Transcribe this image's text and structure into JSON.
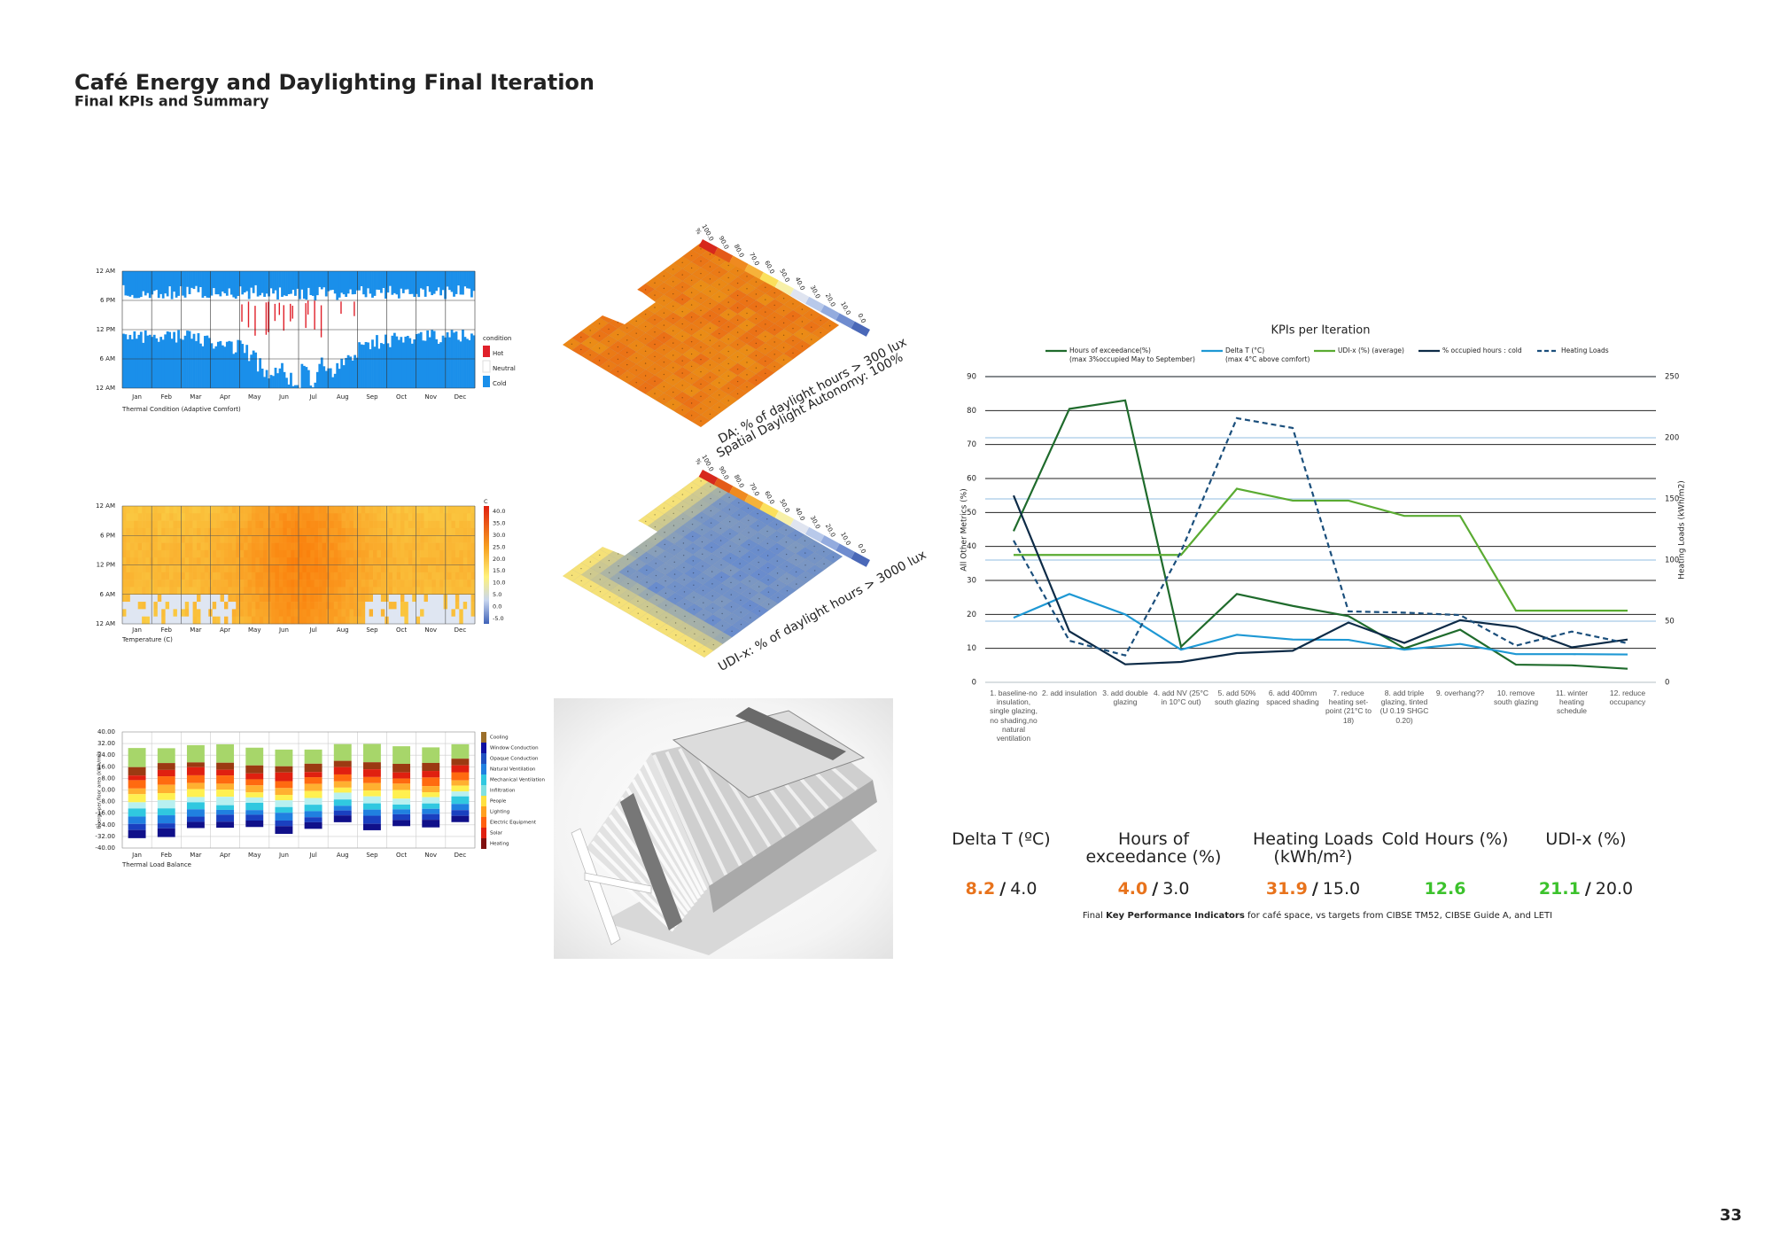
{
  "header": {
    "title": "Café Energy and Daylighting Final Iteration",
    "subtitle": "Final KPIs and Summary"
  },
  "page_number": "33",
  "thermal_condition": {
    "y_labels": [
      "12 AM",
      "6 PM",
      "12 PM",
      "6 AM",
      "12 AM"
    ],
    "months": [
      "Jan",
      "Feb",
      "Mar",
      "Apr",
      "May",
      "Jun",
      "Jul",
      "Aug",
      "Sep",
      "Oct",
      "Nov",
      "Dec"
    ],
    "title": "Thermal Condition (Adaptive Comfort)",
    "legend_title": "condition",
    "legend": [
      "Hot",
      "Neutral",
      "Cold"
    ]
  },
  "temperature": {
    "y_labels": [
      "12 AM",
      "6 PM",
      "12 PM",
      "6 AM",
      "12 AM"
    ],
    "months": [
      "Jan",
      "Feb",
      "Mar",
      "Apr",
      "May",
      "Jun",
      "Jul",
      "Aug",
      "Sep",
      "Oct",
      "Nov",
      "Dec"
    ],
    "title": "Temperature (C)",
    "unit": "C",
    "scale": [
      "40.0",
      "35.0",
      "30.0",
      "25.0",
      "20.0",
      "15.0",
      "10.0",
      "5.0",
      "0.0",
      "-5.0"
    ]
  },
  "load_balance": {
    "y_labels": [
      "40.00",
      "32.00",
      "24.00",
      "16.00",
      "8.00",
      "0.00",
      "-8.00",
      "-16.00",
      "-24.00",
      "-32.00",
      "-40.00"
    ],
    "y_title": "Energy per floor area (kWh/m2)",
    "months": [
      "Jan",
      "Feb",
      "Mar",
      "Apr",
      "May",
      "Jun",
      "Jul",
      "Aug",
      "Sep",
      "Oct",
      "Nov",
      "Dec"
    ],
    "title": "Thermal Load Balance",
    "legend": [
      "Cooling",
      "Window Conduction",
      "Opaque Conduction",
      "Natural Ventilation",
      "Mechanical Ventilation",
      "Infiltration",
      "People",
      "Lighting",
      "Electric Equipment",
      "Solar",
      "Heating"
    ]
  },
  "daylight": [
    {
      "caption": [
        "DA: % of daylight hours > 300 lux",
        "Spatial Daylight Autonomy: 100%"
      ],
      "unit": "%",
      "scale": [
        "100.0",
        "90.0",
        "80.0",
        "70.0",
        "60.0",
        "50.0",
        "40.0",
        "30.0",
        "20.0",
        "10.0",
        "0.0"
      ]
    },
    {
      "caption": [
        "UDI-x: % of daylight hours > 3000 lux"
      ],
      "unit": "%",
      "scale": [
        "100.0",
        "90.0",
        "80.0",
        "70.0",
        "60.0",
        "50.0",
        "40.0",
        "30.0",
        "20.0",
        "10.0",
        "0.0"
      ]
    }
  ],
  "chart_data": {
    "type": "line",
    "title": "KPIs per Iteration",
    "y_label": "All Other Metrics (%)",
    "y2_label": "Heating Loads (kWh/m2)",
    "categories": [
      "1. baseline-no insulation, single glazing, no shading,no natural ventilation",
      "2. add insulation",
      "3. add double glazing",
      "4. add NV (25°C in 10°C out)",
      "5. add 50% south glazing",
      "6. add 400mm spaced shading",
      "7. reduce heating set-point (21°C to 18)",
      "8. add triple glazing, tinted (U 0.19 SHGC 0.20)",
      "9. overhang??",
      "10. remove south glazing",
      "11. winter heating schedule",
      "12. reduce occupancy"
    ],
    "ylim": [
      0,
      90
    ],
    "yticks": [
      0,
      10,
      20,
      30,
      40,
      50,
      60,
      70,
      80,
      90
    ],
    "y2lim": [
      0,
      250
    ],
    "y2ticks": [
      0,
      50,
      100,
      150,
      200,
      250
    ],
    "grid": true,
    "series": [
      {
        "name": "Hours of exceedance(%)",
        "legend_note": "(max 3%occupied May to September)",
        "color": "#1f6b2c",
        "values": [
          44.5,
          80.5,
          83,
          10.5,
          26,
          22.5,
          19.5,
          10,
          15.5,
          5.2,
          5,
          4
        ]
      },
      {
        "name": "Delta T (°C)",
        "legend_note": "(max 4°C above comfort)",
        "color": "#1e98d4",
        "values": [
          19,
          26,
          20,
          9.6,
          14,
          12.6,
          12.5,
          9.6,
          11.3,
          8.3,
          8.3,
          8.2
        ]
      },
      {
        "name": "UDI-x (%) (average)",
        "color": "#5aab32",
        "values": [
          37.5,
          37.5,
          37.5,
          37.5,
          57,
          53.5,
          53.5,
          49,
          49,
          21.1,
          21.1,
          21.1
        ]
      },
      {
        "name": "% occupied hours : cold",
        "color": "#0d2b47",
        "values": [
          55,
          15,
          5.3,
          6,
          8.6,
          9.3,
          17.6,
          11.6,
          18.3,
          16.3,
          10.3,
          12.6
        ]
      },
      {
        "name": "Heating Loads",
        "color": "#1b4f7c",
        "dashed": true,
        "axis": "y2",
        "values": [
          116,
          34,
          22,
          107,
          216,
          208,
          58,
          57,
          55,
          30,
          41.5,
          31.9
        ]
      }
    ]
  },
  "kpi_table": {
    "headers": [
      "Delta T (ºC)",
      "Hours of exceedance (%)",
      "Heating Loads (kWh/m²)",
      "Cold Hours (%)",
      "UDI-x (%)"
    ],
    "values": [
      {
        "actual": "8.2",
        "separator": "/",
        "target": "4.0",
        "color": "#e8731c"
      },
      {
        "actual": "4.0",
        "separator": "/",
        "target": "3.0",
        "color": "#e8731c"
      },
      {
        "actual": "31.9",
        "separator": "/",
        "target": "15.0",
        "color": "#e8731c"
      },
      {
        "actual": "12.6",
        "color": "#3cc22c"
      },
      {
        "actual": "21.1",
        "separator": "/",
        "target": "20.0",
        "color": "#3cc22c"
      }
    ],
    "caption": [
      "Final ",
      "Key Performance Indicators",
      " for café space, vs targets from CIBSE TM52, CIBSE Guide A, and LETI"
    ]
  }
}
